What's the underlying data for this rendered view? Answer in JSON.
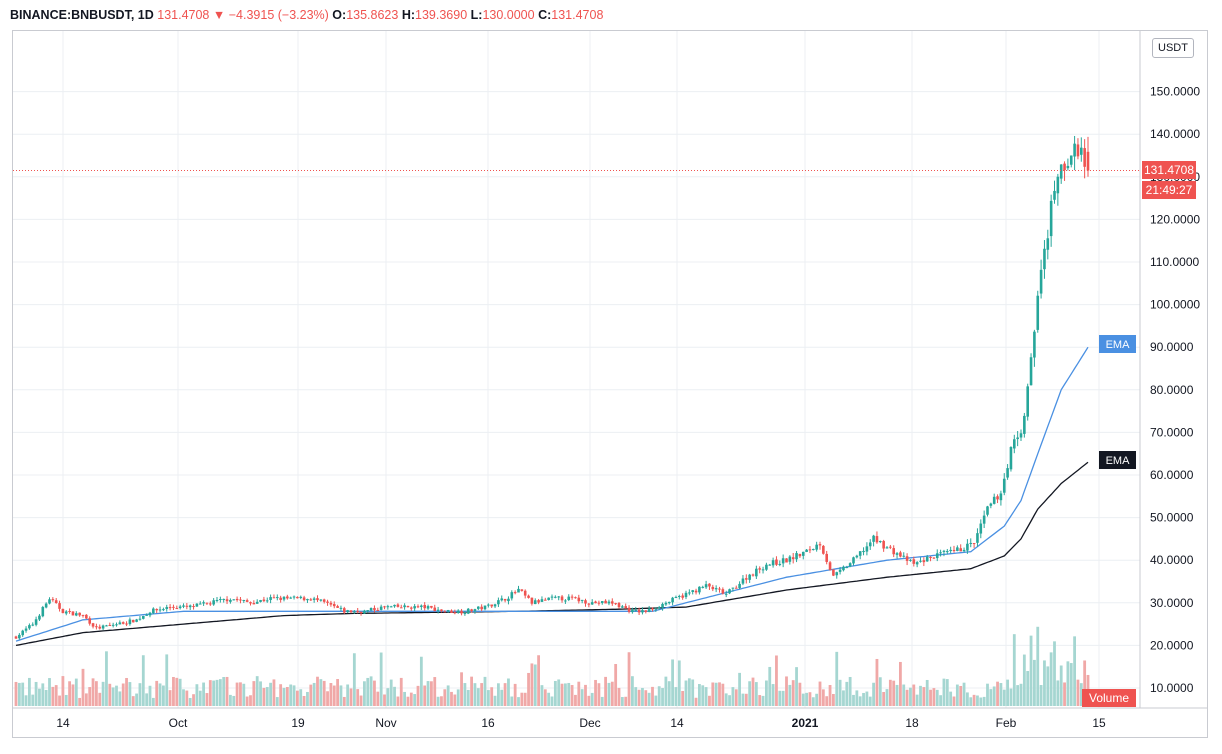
{
  "header": {
    "symbol": "BINANCE:BNBUSDT, 1D",
    "last": "131.4708",
    "arrow": "▼",
    "change": "−4.3915 (−3.23%)",
    "o_label": "O:",
    "o_value": "135.8623",
    "h_label": "H:",
    "h_value": "139.3690",
    "l_label": "L:",
    "l_value": "130.0000",
    "c_label": "C:",
    "c_value": "131.4708"
  },
  "currency_button": "USDT",
  "price_tag": {
    "price": "131.4708",
    "countdown": "21:49:27",
    "color": "#ef5350"
  },
  "ema_labels": [
    {
      "text": "EMA",
      "color": "#4a90e2"
    },
    {
      "text": "EMA",
      "color": "#131722"
    }
  ],
  "volume_label": {
    "text": "Volume",
    "color": "#ef5350"
  },
  "colors": {
    "up": "#26a69a",
    "down": "#ef5350",
    "vol_up": "#a5d6d1",
    "vol_down": "#f0a8a7",
    "grid": "#eceff3"
  },
  "chart_data": {
    "type": "candlestick",
    "y_ticks": [
      "150.0000",
      "140.0000",
      "130.0000",
      "120.0000",
      "110.0000",
      "100.0000",
      "90.0000",
      "80.0000",
      "70.0000",
      "60.0000",
      "50.0000",
      "40.0000",
      "30.0000",
      "20.0000",
      "10.0000"
    ],
    "x_ticks": [
      "14",
      "Oct",
      "19",
      "Nov",
      "16",
      "Dec",
      "14",
      "2021",
      "18",
      "Feb",
      "15"
    ],
    "ylim": [
      4,
      160
    ],
    "current_price": 131.4708,
    "close_anchors": [
      [
        0,
        22
      ],
      [
        5,
        25
      ],
      [
        10,
        31
      ],
      [
        14,
        28
      ],
      [
        20,
        27
      ],
      [
        24,
        24
      ],
      [
        30,
        25
      ],
      [
        36,
        26
      ],
      [
        40,
        28
      ],
      [
        46,
        29
      ],
      [
        52,
        29
      ],
      [
        58,
        30
      ],
      [
        64,
        31
      ],
      [
        70,
        30
      ],
      [
        76,
        31
      ],
      [
        82,
        31
      ],
      [
        88,
        31
      ],
      [
        92,
        30
      ],
      [
        98,
        28
      ],
      [
        104,
        28
      ],
      [
        110,
        29
      ],
      [
        116,
        29
      ],
      [
        122,
        29
      ],
      [
        128,
        28
      ],
      [
        134,
        28
      ],
      [
        140,
        29
      ],
      [
        146,
        31
      ],
      [
        150,
        33
      ],
      [
        154,
        30
      ],
      [
        160,
        31
      ],
      [
        166,
        31
      ],
      [
        172,
        30
      ],
      [
        178,
        30
      ],
      [
        184,
        28
      ],
      [
        188,
        28
      ],
      [
        194,
        30
      ],
      [
        200,
        32
      ],
      [
        206,
        34
      ],
      [
        212,
        32
      ],
      [
        218,
        36
      ],
      [
        224,
        39
      ],
      [
        230,
        40
      ],
      [
        236,
        42
      ],
      [
        240,
        44
      ],
      [
        244,
        36
      ],
      [
        250,
        40
      ],
      [
        256,
        45
      ],
      [
        262,
        42
      ],
      [
        268,
        39
      ],
      [
        274,
        41
      ],
      [
        280,
        42
      ],
      [
        286,
        44
      ],
      [
        290,
        52
      ],
      [
        294,
        56
      ],
      [
        298,
        69
      ],
      [
        300,
        70
      ],
      [
        302,
        80
      ],
      [
        306,
        108
      ],
      [
        310,
        127
      ],
      [
        312,
        131
      ],
      [
        314,
        134
      ],
      [
        316,
        136
      ],
      [
        318,
        135
      ],
      [
        320,
        131.47
      ]
    ],
    "ema_fast_anchors": [
      [
        0,
        21
      ],
      [
        20,
        26
      ],
      [
        50,
        28
      ],
      [
        100,
        28
      ],
      [
        150,
        28
      ],
      [
        190,
        28
      ],
      [
        230,
        36
      ],
      [
        260,
        40
      ],
      [
        285,
        42
      ],
      [
        295,
        48
      ],
      [
        300,
        54
      ],
      [
        305,
        65
      ],
      [
        312,
        80
      ],
      [
        320,
        90
      ]
    ],
    "ema_slow_anchors": [
      [
        0,
        20
      ],
      [
        20,
        23
      ],
      [
        50,
        25
      ],
      [
        80,
        27
      ],
      [
        100,
        27.5
      ],
      [
        150,
        28
      ],
      [
        180,
        28.5
      ],
      [
        200,
        29
      ],
      [
        230,
        33
      ],
      [
        260,
        36
      ],
      [
        285,
        38
      ],
      [
        295,
        41
      ],
      [
        300,
        45
      ],
      [
        305,
        52
      ],
      [
        312,
        58
      ],
      [
        320,
        63
      ]
    ]
  }
}
